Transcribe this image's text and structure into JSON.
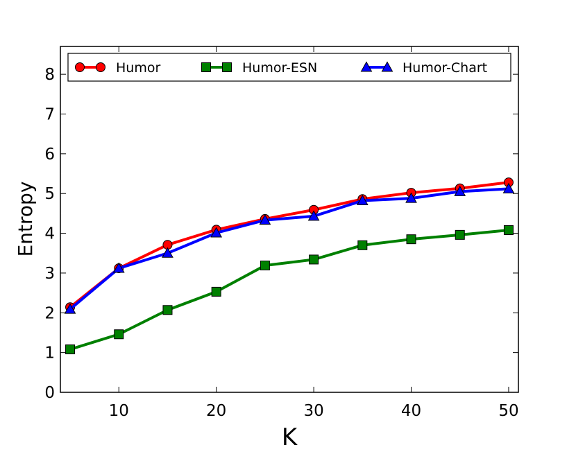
{
  "chart_data": {
    "type": "line",
    "title": "",
    "xlabel": "K",
    "ylabel": "Entropy",
    "x": [
      5,
      10,
      15,
      20,
      25,
      30,
      35,
      40,
      45,
      50
    ],
    "xlim": [
      4,
      51
    ],
    "ylim": [
      0,
      8.7
    ],
    "xticks": [
      "10",
      "20",
      "30",
      "40",
      "50"
    ],
    "yticks": [
      "0",
      "1",
      "2",
      "3",
      "4",
      "5",
      "6",
      "7",
      "8"
    ],
    "grid": false,
    "legend_position": "top",
    "series": [
      {
        "name": "Humor",
        "color": "#ff0000",
        "marker": "circle",
        "values": [
          2.14,
          3.12,
          3.71,
          4.09,
          4.36,
          4.59,
          4.86,
          5.02,
          5.13,
          5.28
        ]
      },
      {
        "name": "Humor-ESN",
        "color": "#008000",
        "marker": "square",
        "values": [
          1.08,
          1.46,
          2.07,
          2.53,
          3.19,
          3.34,
          3.7,
          3.85,
          3.96,
          4.08
        ]
      },
      {
        "name": "Humor-Chart",
        "color": "#0000ff",
        "marker": "triangle",
        "values": [
          2.09,
          3.12,
          3.5,
          4.01,
          4.33,
          4.43,
          4.82,
          4.88,
          5.05,
          5.12
        ]
      }
    ]
  }
}
